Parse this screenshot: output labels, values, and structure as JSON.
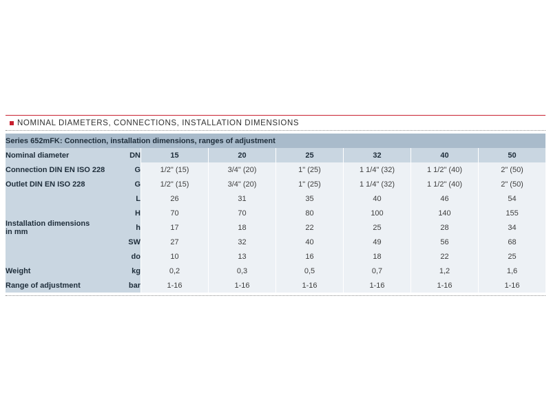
{
  "heading": "NOMINAL DIAMETERS, CONNECTIONS, INSTALLATION DIMENSIONS",
  "colors": {
    "accent": "#c8202f",
    "title_bar": "#a9bbcb",
    "label_cells": "#c9d6e1",
    "value_cells": "#edf1f5"
  },
  "table": {
    "title": "Series 652mFK: Connection, installation dimensions, ranges of adjustment",
    "header": {
      "label": "Nominal diameter",
      "symbol": "DN",
      "values": [
        "15",
        "20",
        "25",
        "32",
        "40",
        "50"
      ]
    },
    "rows": [
      {
        "label": "Connection DIN EN ISO 228",
        "symbol": "G",
        "values": [
          "1/2\" (15)",
          "3/4\" (20)",
          "1\" (25)",
          "1 1/4\" (32)",
          "1 1/2\" (40)",
          "2\" (50)"
        ]
      },
      {
        "label": "Outlet DIN EN ISO 228",
        "symbol": "G",
        "values": [
          "1/2\" (15)",
          "3/4\" (20)",
          "1\" (25)",
          "1 1/4\" (32)",
          "1 1/2\" (40)",
          "2\" (50)"
        ]
      }
    ],
    "installation": {
      "label_line1": "Installation dimensions",
      "label_line2": "in mm",
      "rows": [
        {
          "symbol": "L",
          "values": [
            "26",
            "31",
            "35",
            "40",
            "46",
            "54"
          ]
        },
        {
          "symbol": "H",
          "values": [
            "70",
            "70",
            "80",
            "100",
            "140",
            "155"
          ]
        },
        {
          "symbol": "h",
          "values": [
            "17",
            "18",
            "22",
            "25",
            "28",
            "34"
          ]
        },
        {
          "symbol": "SW",
          "values": [
            "27",
            "32",
            "40",
            "49",
            "56",
            "68"
          ]
        },
        {
          "symbol": "do",
          "values": [
            "10",
            "13",
            "16",
            "18",
            "22",
            "25"
          ]
        }
      ]
    },
    "weight": {
      "label": "Weight",
      "symbol": "kg",
      "values": [
        "0,2",
        "0,3",
        "0,5",
        "0,7",
        "1,2",
        "1,6"
      ]
    },
    "range": {
      "label": "Range of adjustment",
      "symbol": "bar",
      "values": [
        "1-16",
        "1-16",
        "1-16",
        "1-16",
        "1-16",
        "1-16"
      ]
    }
  }
}
